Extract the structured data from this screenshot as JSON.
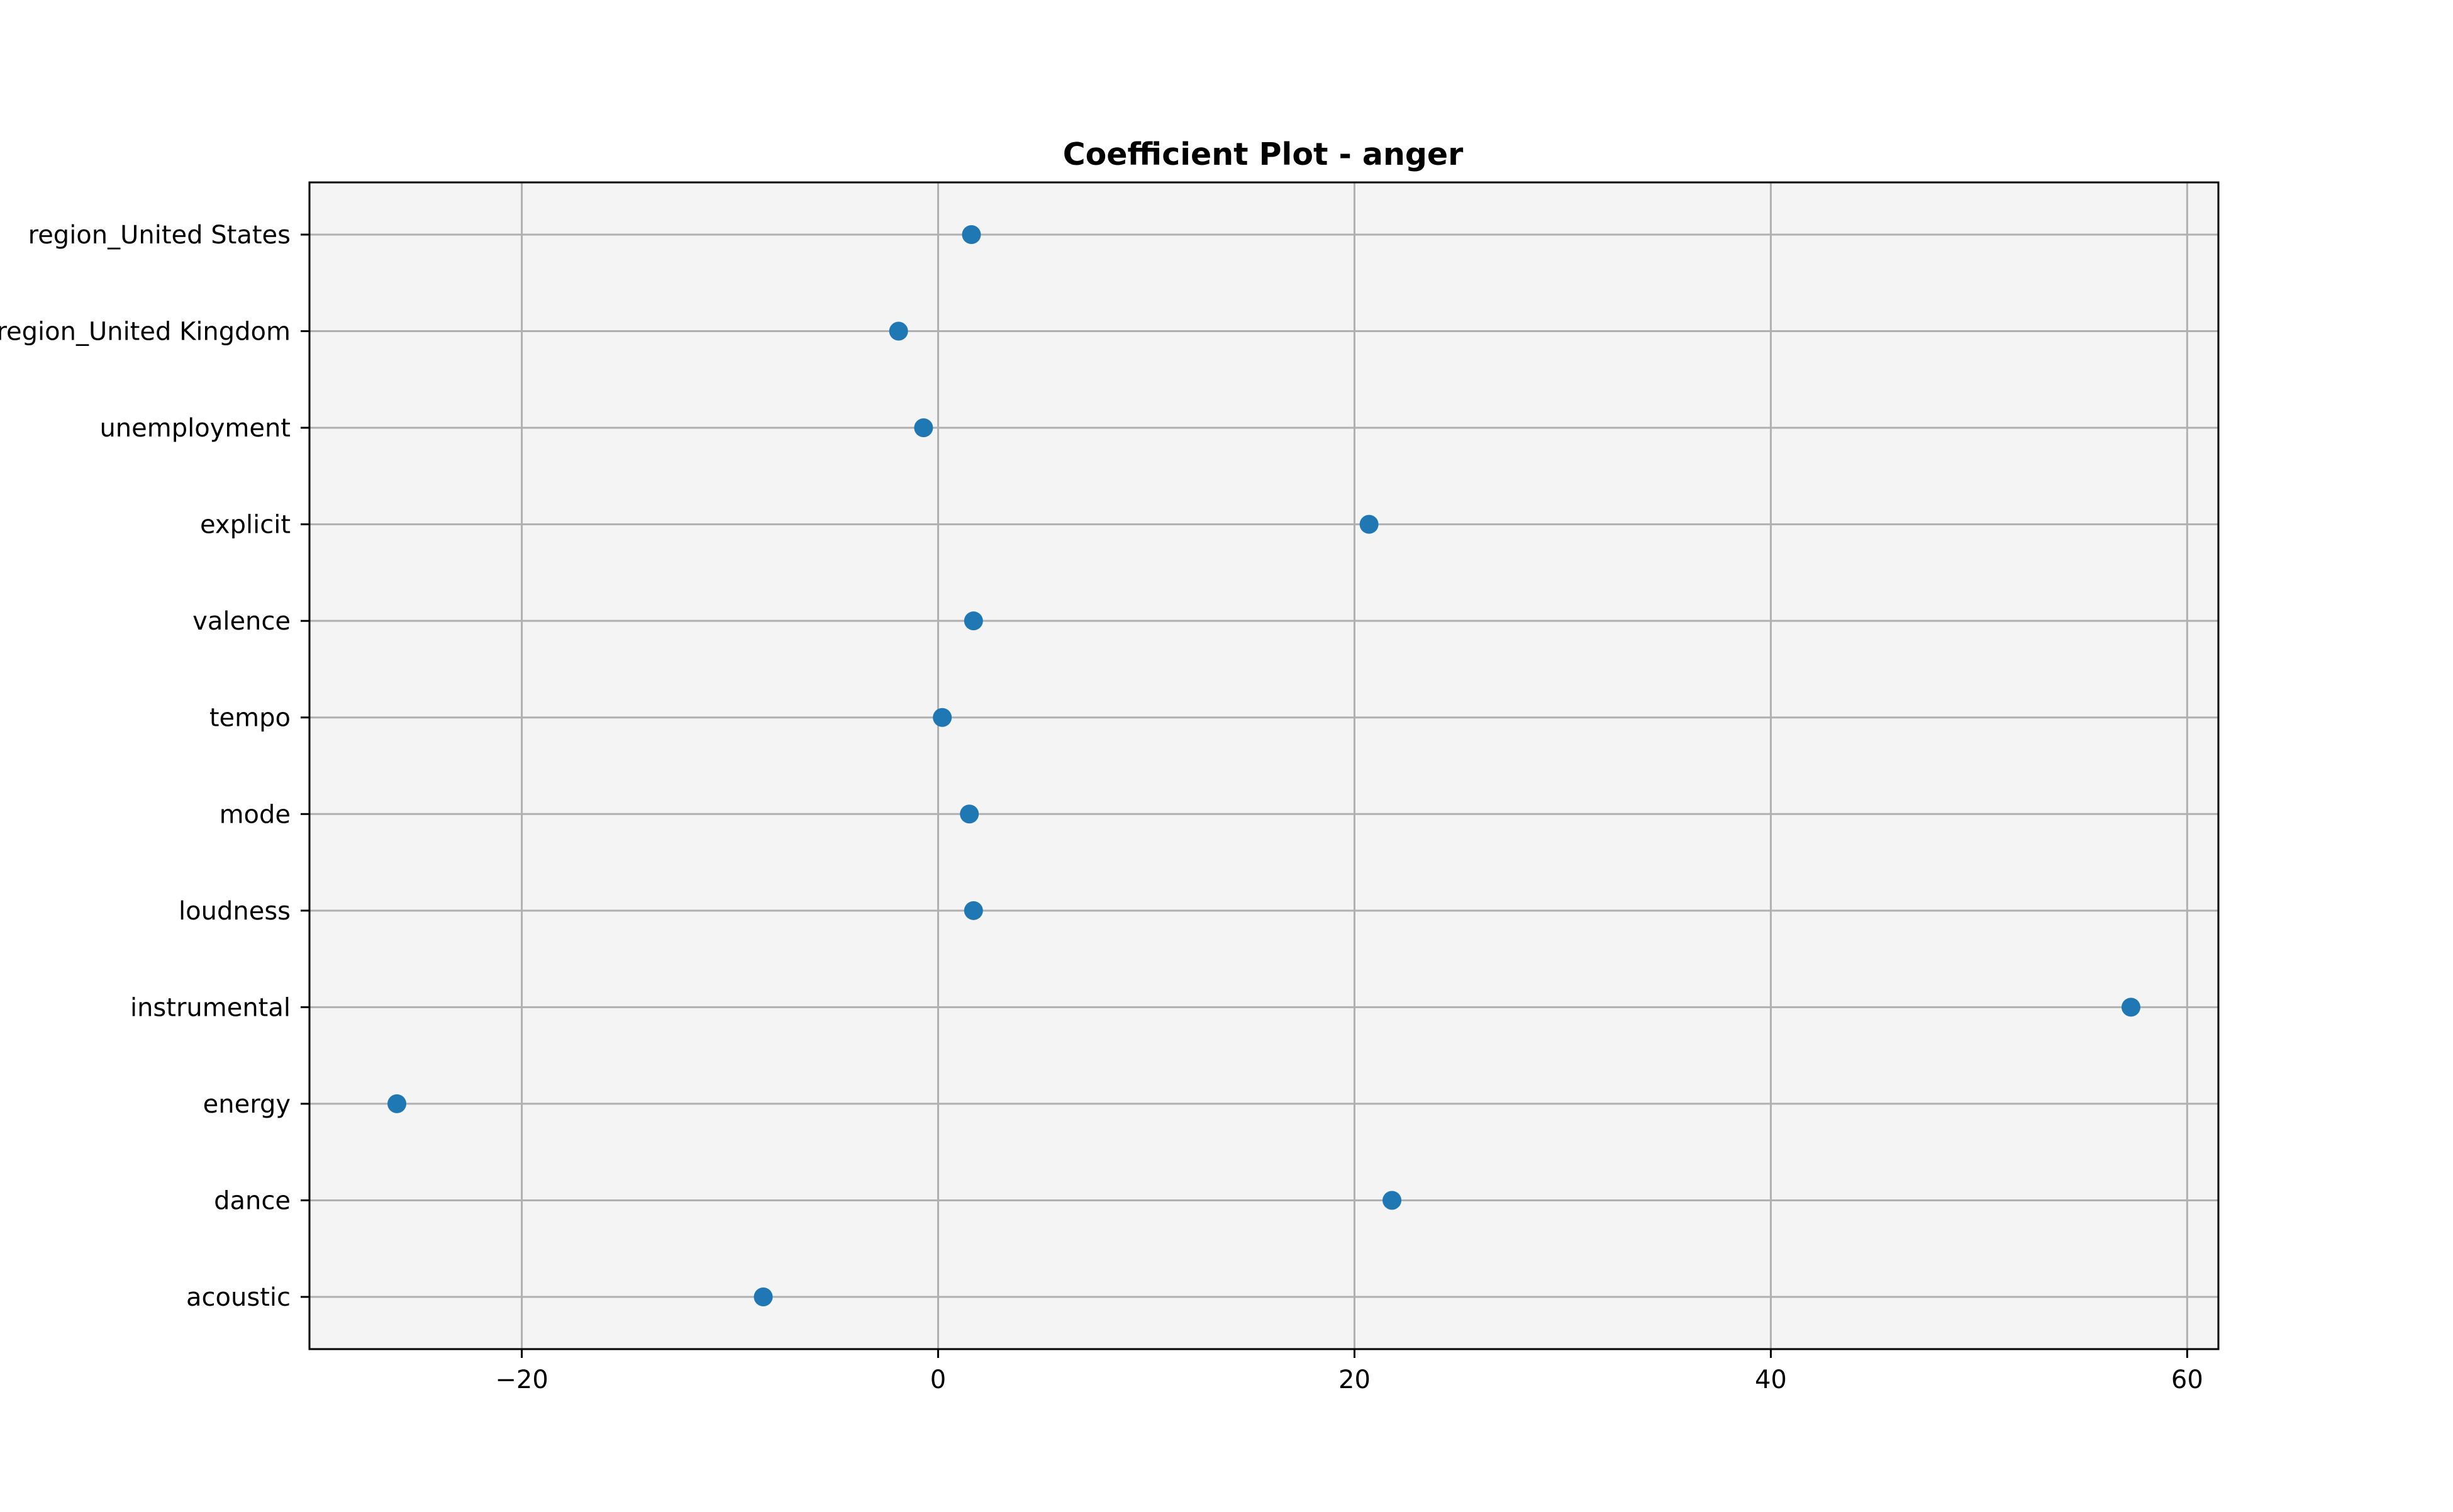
{
  "chart_data": {
    "type": "scatter",
    "title": "Coefficient Plot - anger",
    "xlabel": "",
    "ylabel": "",
    "xlim": [
      -30.2,
      61.5
    ],
    "x_ticks": [
      -20,
      0,
      20,
      40,
      60
    ],
    "x_tick_labels": [
      "−20",
      "0",
      "20",
      "40",
      "60"
    ],
    "categories": [
      "acoustic",
      "dance",
      "energy",
      "instrumental",
      "loudness",
      "mode",
      "tempo",
      "valence",
      "explicit",
      "unemployment",
      "region_United Kingdom",
      "region_United States"
    ],
    "series": [
      {
        "values": [
          -8.4,
          21.8,
          -26.0,
          57.3,
          1.7,
          1.5,
          0.2,
          1.7,
          20.7,
          -0.7,
          -1.9,
          1.6
        ]
      }
    ],
    "grid": true,
    "legend": "none",
    "colors": {
      "marker": "#1f77b4",
      "plot_background": "#f4f4f4",
      "grid": "#b0b0b0",
      "axes": "#000000"
    }
  }
}
